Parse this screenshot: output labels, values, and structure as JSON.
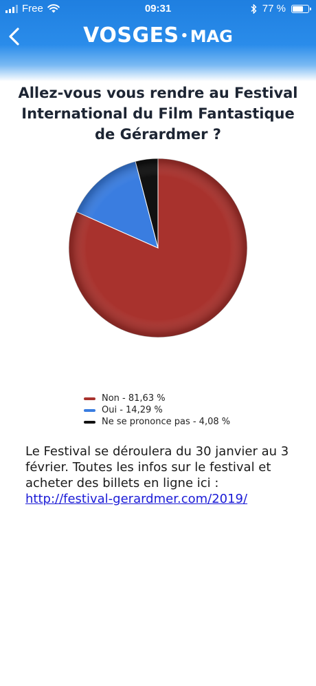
{
  "status_bar": {
    "carrier": "Free",
    "time": "09:31",
    "battery": "77 %",
    "battery_level": 0.77
  },
  "header": {
    "logo_main": "VOSGES",
    "logo_sub": "MAG",
    "back_icon": "chevron-left-icon"
  },
  "poll": {
    "title": "Allez-vous vous rendre au Festival International du Film Fantastique de Gérardmer ?"
  },
  "chart_data": {
    "type": "pie",
    "slices": [
      {
        "label": "Non",
        "value": 81.63,
        "color": "#a8322d",
        "legend": "Non - 81,63 %"
      },
      {
        "label": "Oui",
        "value": 14.29,
        "color": "#3a7de0",
        "legend": "Oui - 14,29 %"
      },
      {
        "label": "Ne se prononce pas",
        "value": 4.08,
        "color": "#111111",
        "legend": "Ne se prononce pas - 4,08 %"
      }
    ],
    "legend_position": "bottom"
  },
  "article": {
    "text": "Le Festival se déroulera du 30 janvier au 3 février. Toutes les infos sur le festival et acheter des billets en ligne ici :",
    "link_text": "http://festival-gerardmer.com/2019/"
  }
}
